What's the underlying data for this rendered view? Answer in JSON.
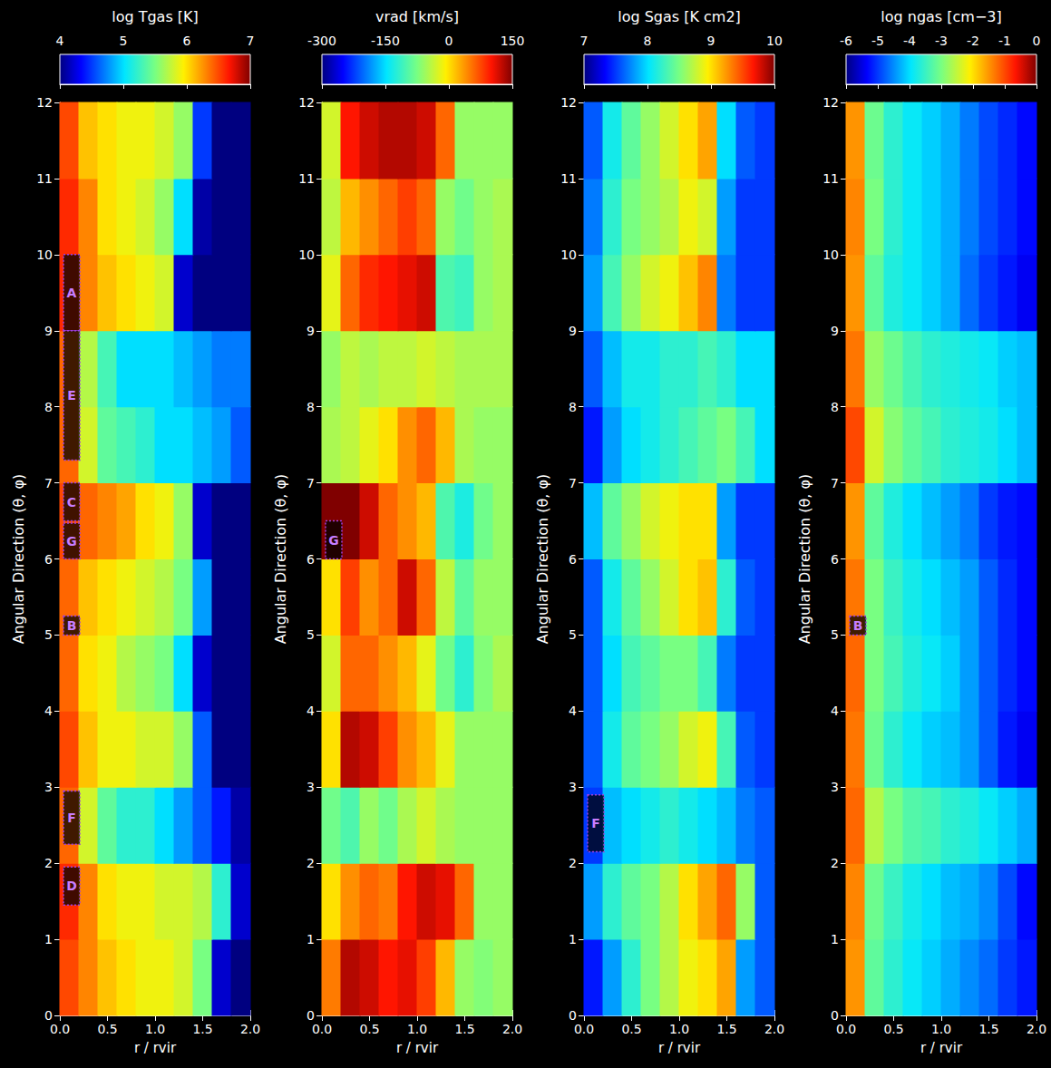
{
  "chart_data": [
    {
      "type": "heatmap",
      "colorbar": {
        "label": "log Tgas [K]",
        "range": [
          4,
          7
        ],
        "ticks": [
          4,
          5,
          6,
          7
        ]
      },
      "xlabel": "r / rvir",
      "ylabel": "Angular Direction (θ, φ)",
      "xlim": [
        0,
        2
      ],
      "xticks": [
        {
          "value": 0,
          "label": "0.0"
        },
        {
          "value": 0.5,
          "label": "0.5"
        },
        {
          "value": 1,
          "label": "1.0"
        },
        {
          "value": 1.5,
          "label": "1.5"
        },
        {
          "value": 2,
          "label": "2.0"
        }
      ],
      "ylim": [
        0,
        12
      ],
      "yticks": [
        0,
        1,
        2,
        3,
        4,
        5,
        6,
        7,
        8,
        9,
        10,
        11,
        12
      ],
      "x": [
        0.1,
        0.3,
        0.5,
        0.7,
        0.9,
        1.1,
        1.3,
        1.5,
        1.7,
        1.9
      ],
      "y": [
        0.5,
        1.5,
        2.5,
        3.5,
        4.5,
        5.5,
        6.5,
        7.5,
        8.5,
        9.5,
        10.5,
        11.5
      ],
      "cells": [
        [
          6.5,
          6.3,
          6.1,
          6.0,
          5.9,
          5.9,
          5.8,
          5.5,
          4.2,
          4.0
        ],
        [
          6.6,
          6.3,
          6.0,
          5.9,
          5.9,
          5.8,
          5.8,
          5.7,
          5.2,
          4.2
        ],
        [
          6.4,
          5.8,
          5.4,
          5.2,
          5.2,
          5.0,
          4.8,
          4.6,
          4.4,
          4.1
        ],
        [
          6.5,
          6.1,
          5.9,
          5.9,
          5.8,
          5.8,
          5.6,
          4.6,
          4.0,
          4.0
        ],
        [
          6.4,
          6.0,
          5.9,
          5.7,
          5.6,
          5.5,
          5.0,
          4.2,
          4.0,
          4.0
        ],
        [
          6.4,
          6.1,
          6.0,
          5.9,
          5.8,
          5.7,
          5.5,
          4.8,
          4.0,
          4.0
        ],
        [
          6.5,
          6.4,
          6.3,
          6.2,
          6.0,
          5.9,
          5.6,
          4.2,
          4.0,
          4.0
        ],
        [
          6.4,
          5.8,
          5.4,
          5.3,
          5.2,
          5.0,
          5.0,
          4.9,
          4.8,
          4.6
        ],
        [
          6.4,
          5.7,
          5.3,
          5.0,
          5.0,
          5.0,
          4.9,
          4.8,
          4.7,
          4.7
        ],
        [
          6.6,
          6.3,
          6.1,
          6.0,
          5.9,
          5.8,
          4.2,
          4.0,
          4.0,
          4.0
        ],
        [
          6.6,
          6.3,
          6.0,
          5.9,
          5.8,
          5.6,
          5.0,
          4.1,
          4.0,
          4.0
        ],
        [
          6.5,
          6.1,
          6.0,
          5.9,
          5.9,
          5.8,
          5.6,
          4.5,
          4.0,
          4.0
        ]
      ],
      "annotations": [
        {
          "text": "A",
          "range": [
            9,
            10
          ]
        },
        {
          "text": "E",
          "range": [
            7.3,
            9
          ]
        },
        {
          "text": "C",
          "range": [
            6.5,
            7
          ]
        },
        {
          "text": "G",
          "range": [
            6,
            6.47
          ]
        },
        {
          "text": "B",
          "range": [
            5,
            5.25
          ]
        },
        {
          "text": "F",
          "range": [
            2.25,
            2.95
          ]
        },
        {
          "text": "D",
          "range": [
            1.45,
            1.95
          ]
        }
      ]
    },
    {
      "type": "heatmap",
      "colorbar": {
        "label": "vrad [km/s]",
        "range": [
          -300,
          150
        ],
        "ticks": [
          -300,
          -150,
          0,
          150
        ]
      },
      "xlabel": "r / rvir",
      "ylabel": "Angular Direction (θ, φ)",
      "xlim": [
        0,
        2
      ],
      "xticks": [
        {
          "value": 0,
          "label": "0.0"
        },
        {
          "value": 0.5,
          "label": "0.5"
        },
        {
          "value": 1,
          "label": "1.0"
        },
        {
          "value": 1.5,
          "label": "1.5"
        },
        {
          "value": 2,
          "label": "2.0"
        }
      ],
      "ylim": [
        0,
        12
      ],
      "yticks": [
        0,
        1,
        2,
        3,
        4,
        5,
        6,
        7,
        8,
        9,
        10,
        11,
        12
      ],
      "x": [
        0.1,
        0.3,
        0.5,
        0.7,
        0.9,
        1.1,
        1.3,
        1.5,
        1.7,
        1.9
      ],
      "y": [
        0.5,
        1.5,
        2.5,
        3.5,
        4.5,
        5.5,
        6.5,
        7.5,
        8.5,
        9.5,
        10.5,
        11.5
      ],
      "cells": [
        [
          50,
          130,
          120,
          100,
          110,
          80,
          20,
          -60,
          -70,
          -60
        ],
        [
          0,
          40,
          60,
          50,
          100,
          120,
          110,
          60,
          -60,
          -60
        ],
        [
          -80,
          -100,
          -60,
          -80,
          -50,
          -30,
          -50,
          -60,
          -60,
          -60
        ],
        [
          0,
          130,
          120,
          80,
          40,
          20,
          -20,
          -60,
          -60,
          -60
        ],
        [
          -30,
          60,
          60,
          40,
          20,
          -20,
          -80,
          -120,
          -70,
          -50
        ],
        [
          0,
          80,
          40,
          60,
          120,
          60,
          -40,
          -90,
          -60,
          -60
        ],
        [
          150,
          150,
          120,
          60,
          40,
          20,
          -100,
          -130,
          -80,
          -60
        ],
        [
          -50,
          -40,
          -20,
          0,
          40,
          60,
          20,
          -50,
          -60,
          -60
        ],
        [
          -60,
          -40,
          -50,
          -40,
          -40,
          -30,
          -40,
          -50,
          -50,
          -50
        ],
        [
          -20,
          60,
          90,
          100,
          110,
          120,
          -100,
          -110,
          -60,
          -50
        ],
        [
          -40,
          20,
          40,
          60,
          80,
          60,
          -60,
          -80,
          -60,
          -50
        ],
        [
          -30,
          100,
          120,
          130,
          130,
          120,
          60,
          -60,
          -60,
          -60
        ]
      ],
      "annotations": [
        {
          "text": "G",
          "range": [
            6,
            6.5
          ]
        }
      ]
    },
    {
      "type": "heatmap",
      "colorbar": {
        "label": "log Sgas [K cm2]",
        "range": [
          7,
          10
        ],
        "ticks": [
          7,
          8,
          9,
          10
        ]
      },
      "xlabel": "r / rvir",
      "ylabel": "Angular Direction (θ, φ)",
      "xlim": [
        0,
        2
      ],
      "xticks": [
        {
          "value": 0,
          "label": "0.0"
        },
        {
          "value": 0.5,
          "label": "0.5"
        },
        {
          "value": 1,
          "label": "1.0"
        },
        {
          "value": 1.5,
          "label": "1.5"
        },
        {
          "value": 2,
          "label": "2.0"
        }
      ],
      "ylim": [
        0,
        12
      ],
      "yticks": [
        0,
        1,
        2,
        3,
        4,
        5,
        6,
        7,
        8,
        9,
        10,
        11,
        12
      ],
      "x": [
        0.1,
        0.3,
        0.5,
        0.7,
        0.9,
        1.1,
        1.3,
        1.5,
        1.7,
        1.9
      ],
      "y": [
        0.5,
        1.5,
        2.5,
        3.5,
        4.5,
        5.5,
        6.5,
        7.5,
        8.5,
        9.5,
        10.5,
        11.5
      ],
      "cells": [
        [
          7.4,
          7.8,
          8.2,
          8.5,
          8.7,
          8.9,
          9.0,
          9.2,
          7.8,
          7.6
        ],
        [
          7.8,
          8.2,
          8.4,
          8.5,
          8.7,
          9.0,
          9.2,
          9.4,
          8.6,
          7.6
        ],
        [
          7.5,
          7.9,
          8.0,
          8.1,
          8.2,
          8.1,
          8.0,
          7.9,
          7.7,
          7.6
        ],
        [
          7.6,
          8.1,
          8.4,
          8.5,
          8.6,
          8.8,
          8.9,
          8.3,
          7.6,
          7.5
        ],
        [
          7.6,
          8.0,
          8.3,
          8.4,
          8.5,
          8.5,
          8.3,
          7.7,
          7.5,
          7.5
        ],
        [
          7.6,
          8.1,
          8.4,
          8.6,
          8.8,
          9.0,
          9.1,
          8.2,
          7.6,
          7.5
        ],
        [
          7.9,
          8.4,
          8.6,
          8.8,
          8.9,
          9.0,
          9.0,
          7.8,
          7.5,
          7.5
        ],
        [
          7.4,
          7.8,
          8.0,
          8.1,
          8.2,
          8.3,
          8.4,
          8.5,
          8.3,
          8.0
        ],
        [
          7.6,
          7.9,
          8.1,
          8.1,
          8.2,
          8.2,
          8.3,
          8.2,
          8.0,
          8.0
        ],
        [
          7.8,
          8.3,
          8.6,
          8.8,
          8.9,
          9.1,
          9.3,
          7.7,
          7.5,
          7.5
        ],
        [
          7.7,
          8.2,
          8.5,
          8.6,
          8.7,
          8.9,
          8.8,
          7.8,
          7.5,
          7.5
        ],
        [
          7.6,
          8.1,
          8.4,
          8.6,
          8.8,
          9.0,
          9.2,
          8.0,
          7.6,
          7.5
        ]
      ],
      "annotations": [
        {
          "text": "F",
          "range": [
            2.15,
            2.9
          ]
        }
      ]
    },
    {
      "type": "heatmap",
      "colorbar": {
        "label": "log ngas [cm−3]",
        "range": [
          -6,
          0
        ],
        "ticks": [
          -6,
          -5,
          -4,
          -3,
          -2,
          -1,
          0
        ]
      },
      "xlabel": "r / rvir",
      "ylabel": "Angular Direction (θ, φ)",
      "xlim": [
        0,
        2
      ],
      "xticks": [
        {
          "value": 0,
          "label": "0.0"
        },
        {
          "value": 0.5,
          "label": "0.5"
        },
        {
          "value": 1,
          "label": "1.0"
        },
        {
          "value": 1.5,
          "label": "1.5"
        },
        {
          "value": 2,
          "label": "2.0"
        }
      ],
      "ylim": [
        0,
        12
      ],
      "yticks": [
        0,
        1,
        2,
        3,
        4,
        5,
        6,
        7,
        8,
        9,
        10,
        11,
        12
      ],
      "x": [
        0.1,
        0.3,
        0.5,
        0.7,
        0.9,
        1.1,
        1.3,
        1.5,
        1.7,
        1.9
      ],
      "y": [
        0.5,
        1.5,
        2.5,
        3.5,
        4.5,
        5.5,
        6.5,
        7.5,
        8.5,
        9.5,
        10.5,
        11.5
      ],
      "cells": [
        [
          -1.5,
          -3.2,
          -3.6,
          -3.9,
          -4.1,
          -4.3,
          -4.5,
          -4.7,
          -5.0,
          -5.2
        ],
        [
          -1.4,
          -3.1,
          -3.5,
          -3.8,
          -4.0,
          -4.2,
          -4.3,
          -4.5,
          -4.9,
          -5.3
        ],
        [
          -1.2,
          -2.6,
          -3.0,
          -3.3,
          -3.4,
          -3.6,
          -3.7,
          -3.9,
          -4.1,
          -4.3
        ],
        [
          -1.3,
          -3.1,
          -3.6,
          -3.9,
          -4.1,
          -4.2,
          -4.4,
          -4.8,
          -5.2,
          -5.4
        ],
        [
          -1.2,
          -3.0,
          -3.4,
          -3.7,
          -3.9,
          -4.1,
          -4.4,
          -4.8,
          -5.1,
          -5.3
        ],
        [
          -1.3,
          -3.0,
          -3.5,
          -3.8,
          -4.0,
          -4.2,
          -4.4,
          -4.8,
          -5.1,
          -5.3
        ],
        [
          -1.5,
          -3.2,
          -3.7,
          -4.0,
          -4.2,
          -4.4,
          -4.6,
          -5.0,
          -5.2,
          -5.3
        ],
        [
          -1.0,
          -2.4,
          -2.9,
          -3.2,
          -3.4,
          -3.6,
          -3.7,
          -3.8,
          -4.0,
          -4.2
        ],
        [
          -1.3,
          -2.8,
          -3.1,
          -3.4,
          -3.6,
          -3.7,
          -3.8,
          -3.9,
          -4.1,
          -4.2
        ],
        [
          -1.5,
          -3.2,
          -3.7,
          -3.9,
          -4.1,
          -4.3,
          -4.7,
          -5.0,
          -5.2,
          -5.4
        ],
        [
          -1.4,
          -3.0,
          -3.6,
          -3.9,
          -4.1,
          -4.3,
          -4.6,
          -4.9,
          -5.1,
          -5.3
        ],
        [
          -1.5,
          -3.1,
          -3.6,
          -3.9,
          -4.1,
          -4.3,
          -4.6,
          -4.9,
          -5.1,
          -5.3
        ]
      ],
      "annotations": [
        {
          "text": "B",
          "range": [
            5,
            5.25
          ]
        }
      ]
    }
  ]
}
